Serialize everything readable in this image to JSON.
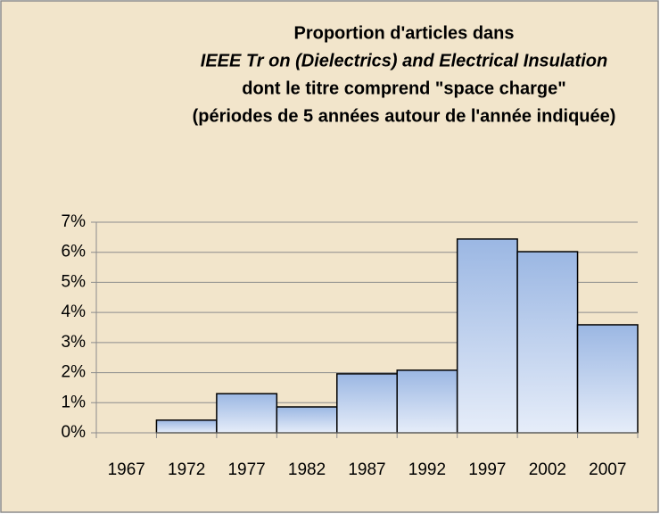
{
  "chart_data": {
    "type": "bar",
    "title": [
      "Proportion d'articles dans",
      "IEEE Tr on (Dielectrics) and Electrical Insulation",
      "dont le titre comprend \"space charge\"",
      "(périodes de 5 années autour de l'année indiquée)"
    ],
    "categories": [
      "1967",
      "1972",
      "1977",
      "1982",
      "1987",
      "1992",
      "1997",
      "2002",
      "2007"
    ],
    "values": [
      0,
      0.42,
      1.3,
      0.86,
      1.96,
      2.08,
      6.44,
      6.02,
      3.59
    ],
    "color": "#9bb7e3",
    "ylim": [
      0,
      7
    ],
    "yticks": [
      {
        "value": 0,
        "label": "0%"
      },
      {
        "value": 1,
        "label": "1%"
      },
      {
        "value": 2,
        "label": "2%"
      },
      {
        "value": 3,
        "label": "3%"
      },
      {
        "value": 4,
        "label": "4%"
      },
      {
        "value": 5,
        "label": "5%"
      },
      {
        "value": 6,
        "label": "6%"
      },
      {
        "value": 7,
        "label": "7%"
      }
    ],
    "grid": true
  }
}
